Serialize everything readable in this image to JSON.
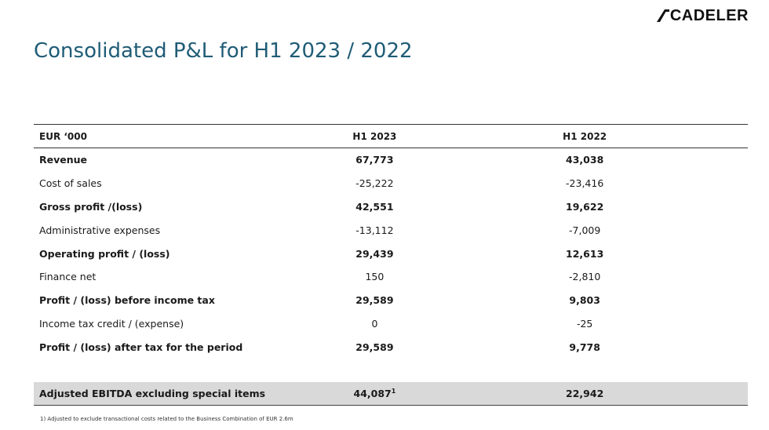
{
  "logo": {
    "text": "CADELER",
    "mark_color": "#111111"
  },
  "title": "Consolidated P&L for H1 2023 / 2022",
  "table": {
    "header": {
      "label": "EUR ‘000",
      "col1": "H1 2023",
      "col2": "H1 2022"
    },
    "rows": [
      {
        "label": "Revenue",
        "h1_2023": "67,773",
        "h1_2022": "43,038",
        "bold": true
      },
      {
        "label": "Cost of sales",
        "h1_2023": "-25,222",
        "h1_2022": "-23,416",
        "bold": false
      },
      {
        "label": "Gross profit /(loss)",
        "h1_2023": "42,551",
        "h1_2022": "19,622",
        "bold": true
      },
      {
        "label": "Administrative expenses",
        "h1_2023": "-13,112",
        "h1_2022": "-7,009",
        "bold": false
      },
      {
        "label": "Operating profit / (loss)",
        "h1_2023": "29,439",
        "h1_2022": "12,613",
        "bold": true
      },
      {
        "label": "Finance net",
        "h1_2023": "150",
        "h1_2022": "-2,810",
        "bold": false
      },
      {
        "label": "Profit / (loss) before income tax",
        "h1_2023": "29,589",
        "h1_2022": "9,803",
        "bold": true
      },
      {
        "label": "Income tax credit / (expense)",
        "h1_2023": "0",
        "h1_2022": "-25",
        "bold": false
      },
      {
        "label": "Profit / (loss) after tax for the period",
        "h1_2023": "29,589",
        "h1_2022": "9,778",
        "bold": true
      }
    ],
    "ebitda": {
      "label": "Adjusted EBITDA excluding special items",
      "h1_2023": "44,087",
      "h1_2023_sup": "1",
      "h1_2022": "22,942"
    }
  },
  "footnote": "1) Adjusted to exclude transactional costs related to the Business Combination of EUR 2.6m",
  "colors": {
    "title": "#1f5c76",
    "highlight_row": "#d9d9d9",
    "rule": "#333333"
  }
}
